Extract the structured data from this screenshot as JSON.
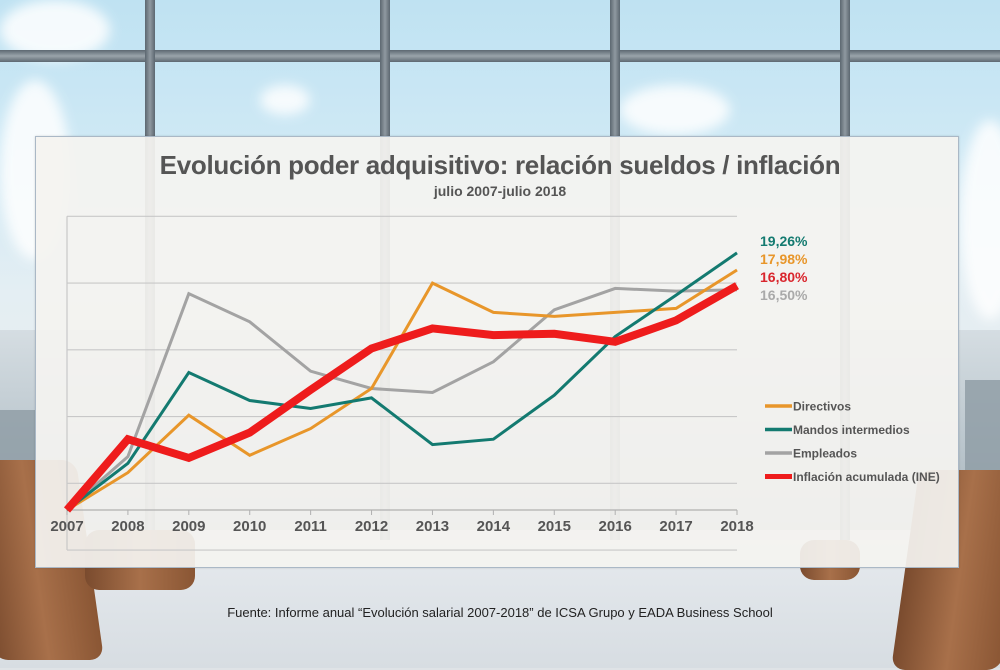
{
  "chart_data": {
    "type": "line",
    "title": "Evolución poder adquisitivo: relación sueldos / inflación",
    "subtitle": "julio 2007-julio 2018",
    "xlabel": "",
    "ylabel": "",
    "x": [
      "2007",
      "2008",
      "2009",
      "2010",
      "2011",
      "2012",
      "2013",
      "2014",
      "2015",
      "2016",
      "2017",
      "2018"
    ],
    "ylim": [
      -3,
      22
    ],
    "grid": true,
    "legend_position": "right",
    "series": [
      {
        "name": "Directivos",
        "color": "#e8962a",
        "values": [
          0,
          2.8,
          7.1,
          4.1,
          6.1,
          9.1,
          17.0,
          14.8,
          14.5,
          14.8,
          15.1,
          17.98
        ],
        "end_label": "17,98%"
      },
      {
        "name": "Mandos intermedios",
        "color": "#137a70",
        "values": [
          0,
          3.5,
          10.3,
          8.2,
          7.6,
          8.4,
          4.9,
          5.3,
          8.6,
          13.0,
          16.1,
          19.26
        ],
        "end_label": "19,26%"
      },
      {
        "name": "Empleados",
        "color": "#a3a3a3",
        "values": [
          0,
          4.0,
          16.2,
          14.1,
          10.4,
          9.1,
          8.8,
          11.1,
          15.0,
          16.6,
          16.4,
          16.5
        ],
        "end_label": "16,50%"
      },
      {
        "name": "Inflación acumulada (INE)",
        "color": "#ee1c1c",
        "values": [
          0,
          5.3,
          3.9,
          5.8,
          9.0,
          12.1,
          13.6,
          13.1,
          13.2,
          12.6,
          14.2,
          16.8
        ],
        "end_label": "16,80%"
      }
    ],
    "end_label_colors": {
      "Mandos intermedios": "#137a70",
      "Directivos": "#e8962a",
      "Inflación acumulada (INE)": "#d9262e",
      "Empleados": "#aaaaaa"
    }
  },
  "source": "Fuente: Informe anual “Evolución salarial 2007-2018” de ICSA Grupo y EADA Business School"
}
